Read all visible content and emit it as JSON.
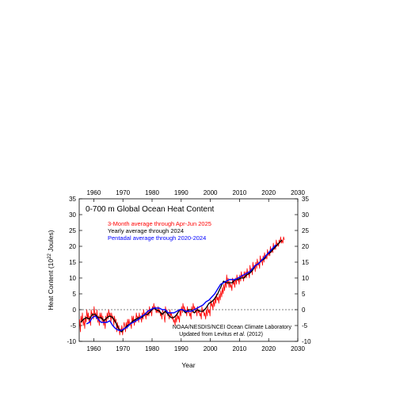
{
  "chart_data": {
    "type": "line",
    "title": "0-700 m Global Ocean Heat Content",
    "xlabel": "Year",
    "ylabel_main": "Heat Content (10",
    "ylabel_exp": "22",
    "ylabel_tail": " Joules)",
    "xlim": [
      1955,
      2030
    ],
    "ylim": [
      -10,
      35
    ],
    "x_ticks": [
      1960,
      1970,
      1980,
      1990,
      2000,
      2010,
      2020,
      2030
    ],
    "y_ticks": [
      -10,
      -5,
      0,
      5,
      10,
      15,
      20,
      25,
      30,
      35
    ],
    "zero_line": "dashed",
    "legend_position": "top-left",
    "note_line1": "NOAA/NESDIS/NCEI Ocean Climate Laboratory",
    "note_line2_prefix": "Updated from Levitus ",
    "note_line2_italic": "et al.",
    "note_line2_suffix": " (2012)",
    "series": [
      {
        "name": "3-Month average through Apr-Jun 2025",
        "color": "#ff0000",
        "kind": "seasonal",
        "x": [
          1955.1,
          1955.4,
          1955.6,
          1955.9,
          1956.1,
          1956.4,
          1956.6,
          1956.9,
          1957.1,
          1957.4,
          1957.6,
          1957.9,
          1958.1,
          1958.4,
          1958.6,
          1958.9,
          1959.1,
          1959.4,
          1959.6,
          1959.9,
          1960.1,
          1960.4,
          1960.6,
          1960.9,
          1961.1,
          1961.4,
          1961.6,
          1961.9,
          1962.1,
          1962.4,
          1962.6,
          1962.9,
          1963.1,
          1963.4,
          1963.6,
          1963.9,
          1964.1,
          1964.4,
          1964.6,
          1964.9,
          1965.1,
          1965.4,
          1965.6,
          1965.9,
          1966.1,
          1966.4,
          1966.6,
          1966.9,
          1967.1,
          1967.4,
          1967.6,
          1967.9,
          1968.1,
          1968.4,
          1968.6,
          1968.9,
          1969.1,
          1969.4,
          1969.6,
          1969.9,
          1970.1,
          1970.4,
          1970.6,
          1970.9,
          1971.1,
          1971.4,
          1971.6,
          1971.9,
          1972.1,
          1972.4,
          1972.6,
          1972.9,
          1973.1,
          1973.4,
          1973.6,
          1973.9,
          1974.1,
          1974.4,
          1974.6,
          1974.9,
          1975.1,
          1975.4,
          1975.6,
          1975.9,
          1976.1,
          1976.4,
          1976.6,
          1976.9,
          1977.1,
          1977.4,
          1977.6,
          1977.9,
          1978.1,
          1978.4,
          1978.6,
          1978.9,
          1979.1,
          1979.4,
          1979.6,
          1979.9,
          1980.1,
          1980.4,
          1980.6,
          1980.9,
          1981.1,
          1981.4,
          1981.6,
          1981.9,
          1982.1,
          1982.4,
          1982.6,
          1982.9,
          1983.1,
          1983.4,
          1983.6,
          1983.9,
          1984.1,
          1984.4,
          1984.6,
          1984.9,
          1985.1,
          1985.4,
          1985.6,
          1985.9,
          1986.1,
          1986.4,
          1986.6,
          1986.9,
          1987.1,
          1987.4,
          1987.6,
          1987.9,
          1988.1,
          1988.4,
          1988.6,
          1988.9,
          1989.1,
          1989.4,
          1989.6,
          1989.9,
          1990.1,
          1990.4,
          1990.6,
          1990.9,
          1991.1,
          1991.4,
          1991.6,
          1991.9,
          1992.1,
          1992.4,
          1992.6,
          1992.9,
          1993.1,
          1993.4,
          1993.6,
          1993.9,
          1994.1,
          1994.4,
          1994.6,
          1994.9,
          1995.1,
          1995.4,
          1995.6,
          1995.9,
          1996.1,
          1996.4,
          1996.6,
          1996.9,
          1997.1,
          1997.4,
          1997.6,
          1997.9,
          1998.1,
          1998.4,
          1998.6,
          1998.9,
          1999.1,
          1999.4,
          1999.6,
          1999.9,
          2000.1,
          2000.4,
          2000.6,
          2000.9,
          2001.1,
          2001.4,
          2001.6,
          2001.9,
          2002.1,
          2002.4,
          2002.6,
          2002.9,
          2003.1,
          2003.4,
          2003.6,
          2003.9,
          2004.1,
          2004.4,
          2004.6,
          2004.9,
          2005.1,
          2005.4,
          2005.6,
          2005.9,
          2006.1,
          2006.4,
          2006.6,
          2006.9,
          2007.1,
          2007.4,
          2007.6,
          2007.9,
          2008.1,
          2008.4,
          2008.6,
          2008.9,
          2009.1,
          2009.4,
          2009.6,
          2009.9,
          2010.1,
          2010.4,
          2010.6,
          2010.9,
          2011.1,
          2011.4,
          2011.6,
          2011.9,
          2012.1,
          2012.4,
          2012.6,
          2012.9,
          2013.1,
          2013.4,
          2013.6,
          2013.9,
          2014.1,
          2014.4,
          2014.6,
          2014.9,
          2015.1,
          2015.4,
          2015.6,
          2015.9,
          2016.1,
          2016.4,
          2016.6,
          2016.9,
          2017.1,
          2017.4,
          2017.6,
          2017.9,
          2018.1,
          2018.4,
          2018.6,
          2018.9,
          2019.1,
          2019.4,
          2019.6,
          2019.9,
          2020.1,
          2020.4,
          2020.6,
          2020.9,
          2021.1,
          2021.4,
          2021.6,
          2021.9,
          2022.1,
          2022.4,
          2022.6,
          2022.9,
          2023.1,
          2023.4,
          2023.6,
          2023.9,
          2024.1,
          2024.4,
          2024.6,
          2024.9,
          2025.1,
          2025.4
        ],
        "y": [
          -3,
          -7,
          -2,
          -4,
          -1,
          -5,
          -3,
          -6,
          -2,
          -4,
          0,
          -3,
          -1,
          -4,
          -2,
          -5,
          0,
          -2,
          -1,
          -3,
          1,
          -2,
          -1,
          -3,
          0,
          -4,
          -2,
          -5,
          -1,
          -3,
          -1,
          -4,
          -2,
          -5,
          -3,
          -6,
          -2,
          -4,
          -1,
          -3,
          0,
          -2,
          -1,
          -4,
          -1,
          -3,
          -2,
          -5,
          -2,
          -4,
          -3,
          -7,
          -4,
          -6,
          -5,
          -8,
          -6,
          -7,
          -5,
          -8,
          -6,
          -4,
          -5,
          -7,
          -4,
          -6,
          -3,
          -5,
          -3,
          -5,
          -4,
          -6,
          -2,
          -4,
          -2,
          -5,
          -3,
          -4,
          -1,
          -3,
          -2,
          -4,
          -1,
          -3,
          -2,
          -4,
          -1,
          -3,
          0,
          -2,
          -1,
          -3,
          -1,
          -2,
          0,
          -2,
          1,
          -1,
          0,
          -2,
          1,
          0,
          2,
          0,
          1,
          -1,
          0,
          -1,
          1,
          -1,
          0,
          -2,
          -1,
          -3,
          0,
          -1,
          -2,
          -4,
          1,
          -1,
          0,
          -2,
          -1,
          -3,
          0,
          -2,
          -1,
          -3,
          -2,
          -4,
          -3,
          -5,
          -2,
          -4,
          -1,
          -3,
          -2,
          -4,
          0,
          -2,
          1,
          -1,
          2,
          0,
          1,
          -1,
          0,
          -2,
          1,
          -1,
          0,
          -2,
          -1,
          -3,
          1,
          -1,
          2,
          0,
          1,
          -1,
          0,
          -2,
          1,
          -1,
          0,
          -2,
          -1,
          -3,
          1,
          -1,
          0,
          -2,
          -1,
          -3,
          0,
          -2,
          1,
          -1,
          0,
          -2,
          3,
          1,
          2,
          0,
          3,
          1,
          4,
          2,
          5,
          3,
          4,
          2,
          5,
          3,
          6,
          4,
          7,
          5,
          8,
          6,
          9,
          7,
          11,
          8,
          10,
          7,
          9,
          7,
          8,
          6,
          10,
          8,
          9,
          7,
          10,
          8,
          11,
          9,
          10,
          8,
          11,
          9,
          12,
          10,
          11,
          9,
          12,
          10,
          12,
          10,
          13,
          11,
          12,
          10,
          14,
          12,
          13,
          11,
          15,
          13,
          14,
          12,
          15,
          13,
          16,
          14,
          15,
          13,
          17,
          15,
          16,
          14,
          17,
          15,
          18,
          16,
          17,
          16,
          19,
          17,
          18,
          17,
          20,
          18,
          19,
          18,
          21,
          19,
          20,
          19,
          22,
          20,
          21,
          20,
          22,
          21,
          23,
          21,
          22,
          21,
          23,
          22
        ],
        "y_scale_note": ""
      },
      {
        "name": "Yearly average through 2024",
        "color": "#000000",
        "kind": "yearly",
        "x": [
          1955.5,
          1956.5,
          1957.5,
          1958.5,
          1959.5,
          1960.5,
          1961.5,
          1962.5,
          1963.5,
          1964.5,
          1965.5,
          1966.5,
          1967.5,
          1968.5,
          1969.5,
          1970.5,
          1971.5,
          1972.5,
          1973.5,
          1974.5,
          1975.5,
          1976.5,
          1977.5,
          1978.5,
          1979.5,
          1980.5,
          1981.5,
          1982.5,
          1983.5,
          1984.5,
          1985.5,
          1986.5,
          1987.5,
          1988.5,
          1989.5,
          1990.5,
          1991.5,
          1992.5,
          1993.5,
          1994.5,
          1995.5,
          1996.5,
          1997.5,
          1998.5,
          1999.5,
          2000.5,
          2001.5,
          2002.5,
          2003.5,
          2004.5,
          2005.5,
          2006.5,
          2007.5,
          2008.5,
          2009.5,
          2010.5,
          2011.5,
          2012.5,
          2013.5,
          2014.5,
          2015.5,
          2016.5,
          2017.5,
          2018.5,
          2019.5,
          2020.5,
          2021.5,
          2022.5,
          2023.5,
          2024.5
        ],
        "y": [
          -4,
          -3,
          -2.5,
          -3,
          -1.5,
          -1.5,
          -2.5,
          -2.5,
          -3.5,
          -2.5,
          -2,
          -2.5,
          -4,
          -6,
          -7,
          -6,
          -5,
          -4.5,
          -3.5,
          -3,
          -2.5,
          -2.5,
          -1.5,
          -1.5,
          -0.5,
          0.5,
          0,
          -0.5,
          -1.5,
          -0.5,
          -1.5,
          -2.5,
          -2.5,
          -1.5,
          0,
          0,
          -1,
          0,
          0,
          -1,
          0,
          -0.5,
          -0.5,
          0.5,
          2,
          2.5,
          3.5,
          5,
          7,
          9,
          8.5,
          8.5,
          8.5,
          9.5,
          9.5,
          10,
          10,
          11,
          11.5,
          12.5,
          14,
          14.5,
          15.5,
          16,
          17.5,
          18,
          19,
          20,
          21,
          22
        ]
      },
      {
        "name": "Pentadal average through 2020-2024",
        "color": "#0000ff",
        "kind": "pentadal",
        "x": [
          1957.5,
          1958.5,
          1959.5,
          1960.5,
          1961.5,
          1962.5,
          1963.5,
          1964.5,
          1965.5,
          1966.5,
          1967.5,
          1968.5,
          1969.5,
          1970.5,
          1971.5,
          1972.5,
          1973.5,
          1974.5,
          1975.5,
          1976.5,
          1977.5,
          1978.5,
          1979.5,
          1980.5,
          1981.5,
          1982.5,
          1983.5,
          1984.5,
          1985.5,
          1986.5,
          1987.5,
          1988.5,
          1989.5,
          1990.5,
          1991.5,
          1992.5,
          1993.5,
          1994.5,
          1995.5,
          1996.5,
          1997.5,
          1998.5,
          1999.5,
          2000.5,
          2001.5,
          2002.5,
          2003.5,
          2004.5,
          2005.5,
          2006.5,
          2007.5,
          2008.5,
          2009.5,
          2010.5,
          2011.5,
          2012.5,
          2013.5,
          2014.5,
          2015.5,
          2016.5,
          2017.5,
          2018.5,
          2019.5,
          2020.5,
          2021.5,
          2022.5
        ],
        "y": [
          -4.5,
          -4,
          -2.5,
          -2,
          -3,
          -4,
          -4,
          -4,
          -3.5,
          -5,
          -6,
          -6.5,
          -6.5,
          -6,
          -5.5,
          -4.5,
          -4,
          -3.5,
          -3,
          -2,
          -1.5,
          -0.5,
          0,
          0.5,
          0.5,
          0.5,
          0,
          0,
          -1,
          -1,
          -1,
          -0.5,
          0,
          0,
          -0.5,
          -0.5,
          -0.5,
          0,
          0.5,
          1,
          1.5,
          2.5,
          3,
          4,
          5,
          6.5,
          8,
          8.5,
          9,
          9.5,
          9.5,
          9.5,
          10,
          10.5,
          11,
          11.5,
          12,
          13,
          14,
          14.5,
          15.5,
          16.5,
          17.5,
          18.5,
          19.5,
          20.5
        ]
      }
    ]
  }
}
